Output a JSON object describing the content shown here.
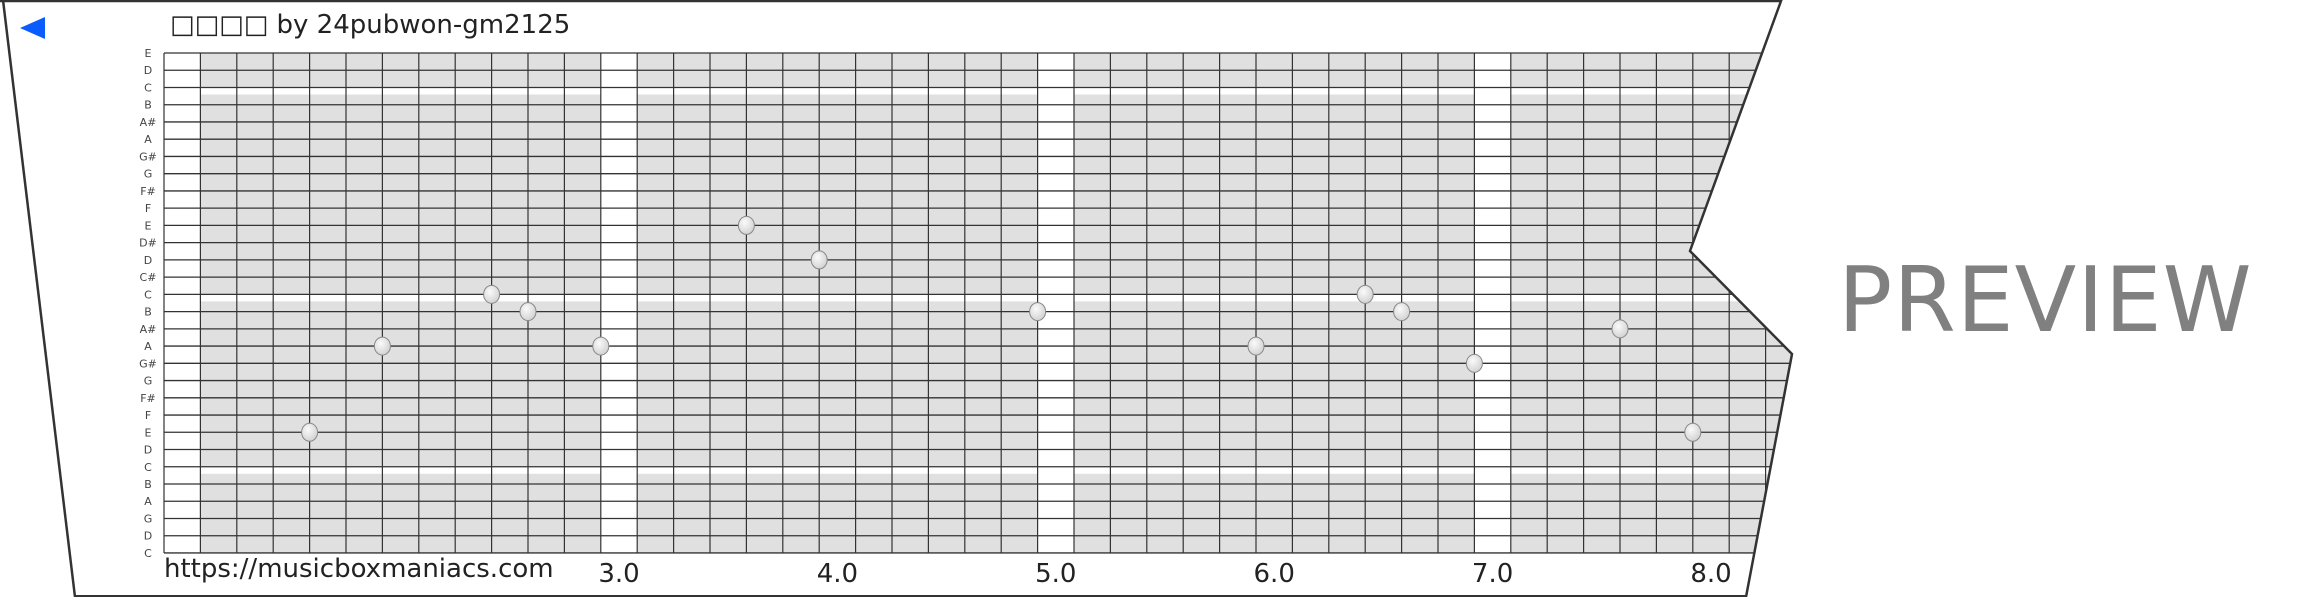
{
  "header": {
    "title": "□□□□ by 24pubwon-gm2125",
    "back_icon": "left-triangle-icon",
    "accent_color": "#0a5cff"
  },
  "watermark": "PREVIEW",
  "footer": {
    "url": "https://musicboxmaniacs.com"
  },
  "grid": {
    "row_labels": [
      "E",
      "D",
      "C",
      "B",
      "A#",
      "A",
      "G#",
      "G",
      "F#",
      "F",
      "E",
      "D#",
      "D",
      "C#",
      "C",
      "B",
      "A#",
      "A",
      "G#",
      "G",
      "F#",
      "F",
      "E",
      "D",
      "C",
      "B",
      "A",
      "G",
      "D",
      "C"
    ],
    "beat_labels": [
      "3.0",
      "4.0",
      "5.0",
      "6.0",
      "7.0",
      "8.0"
    ],
    "cell_color": "#e0e0e0",
    "notes": [
      {
        "beat": 1.667,
        "row": 22,
        "pitch": "E"
      },
      {
        "beat": 2.0,
        "row": 17,
        "pitch": "A"
      },
      {
        "beat": 2.5,
        "row": 14,
        "pitch": "C"
      },
      {
        "beat": 2.667,
        "row": 15,
        "pitch": "B"
      },
      {
        "beat": 3.0,
        "row": 17,
        "pitch": "A"
      },
      {
        "beat": 3.667,
        "row": 10,
        "pitch": "E"
      },
      {
        "beat": 4.0,
        "row": 12,
        "pitch": "D"
      },
      {
        "beat": 5.0,
        "row": 15,
        "pitch": "B"
      },
      {
        "beat": 6.0,
        "row": 17,
        "pitch": "A"
      },
      {
        "beat": 6.5,
        "row": 14,
        "pitch": "C"
      },
      {
        "beat": 6.667,
        "row": 15,
        "pitch": "B"
      },
      {
        "beat": 7.0,
        "row": 18,
        "pitch": "G#"
      },
      {
        "beat": 7.667,
        "row": 16,
        "pitch": "A#"
      },
      {
        "beat": 8.0,
        "row": 22,
        "pitch": "E"
      }
    ]
  }
}
